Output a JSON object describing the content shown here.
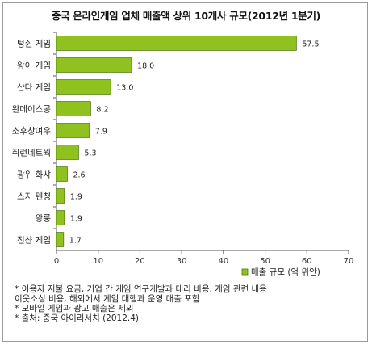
{
  "title": "중국 온라인게임 업체 매출액 상위 10개사 규모(2012년 1분기)",
  "chart_data": {
    "type": "bar",
    "orientation": "horizontal",
    "categories": [
      "텅쉰 게임",
      "왕이 게임",
      "샨다 게임",
      "완메이스콩",
      "소후창여우",
      "쥐런네트웍",
      "광위 화샤",
      "스지 톈청",
      "왕룽",
      "진샨 게임"
    ],
    "series": [
      {
        "name": "매출 규모 (억 위안)",
        "values": [
          57.5,
          18.0,
          13.0,
          8.2,
          7.9,
          5.3,
          2.6,
          1.9,
          1.9,
          1.7
        ]
      }
    ],
    "value_labels": [
      "57.5",
      "18.0",
      "13.0",
      "8.2",
      "7.9",
      "5.3",
      "2.6",
      "1.9",
      "1.9",
      "1.7"
    ],
    "xlim": [
      0,
      70
    ],
    "xticks": [
      0,
      10,
      20,
      30,
      40,
      50,
      60,
      70
    ],
    "grid": false,
    "legend_position": "bottom-right",
    "colors": {
      "bar_fill": "#8fc21f",
      "bar_stroke": "#4f7a10",
      "axis": "#555555"
    }
  },
  "notes": [
    "* 이용자 지불 요금, 기업 간 게임 연구개발과 대리 비용, 게임 관련 내용",
    "이웃소싱 비용, 해외에서 게임 대행과 운영 매출 포함",
    "* 모바일 게임과 광고 매출은 제외",
    "* 출처: 중국 아이리서치 (2012.4)"
  ]
}
